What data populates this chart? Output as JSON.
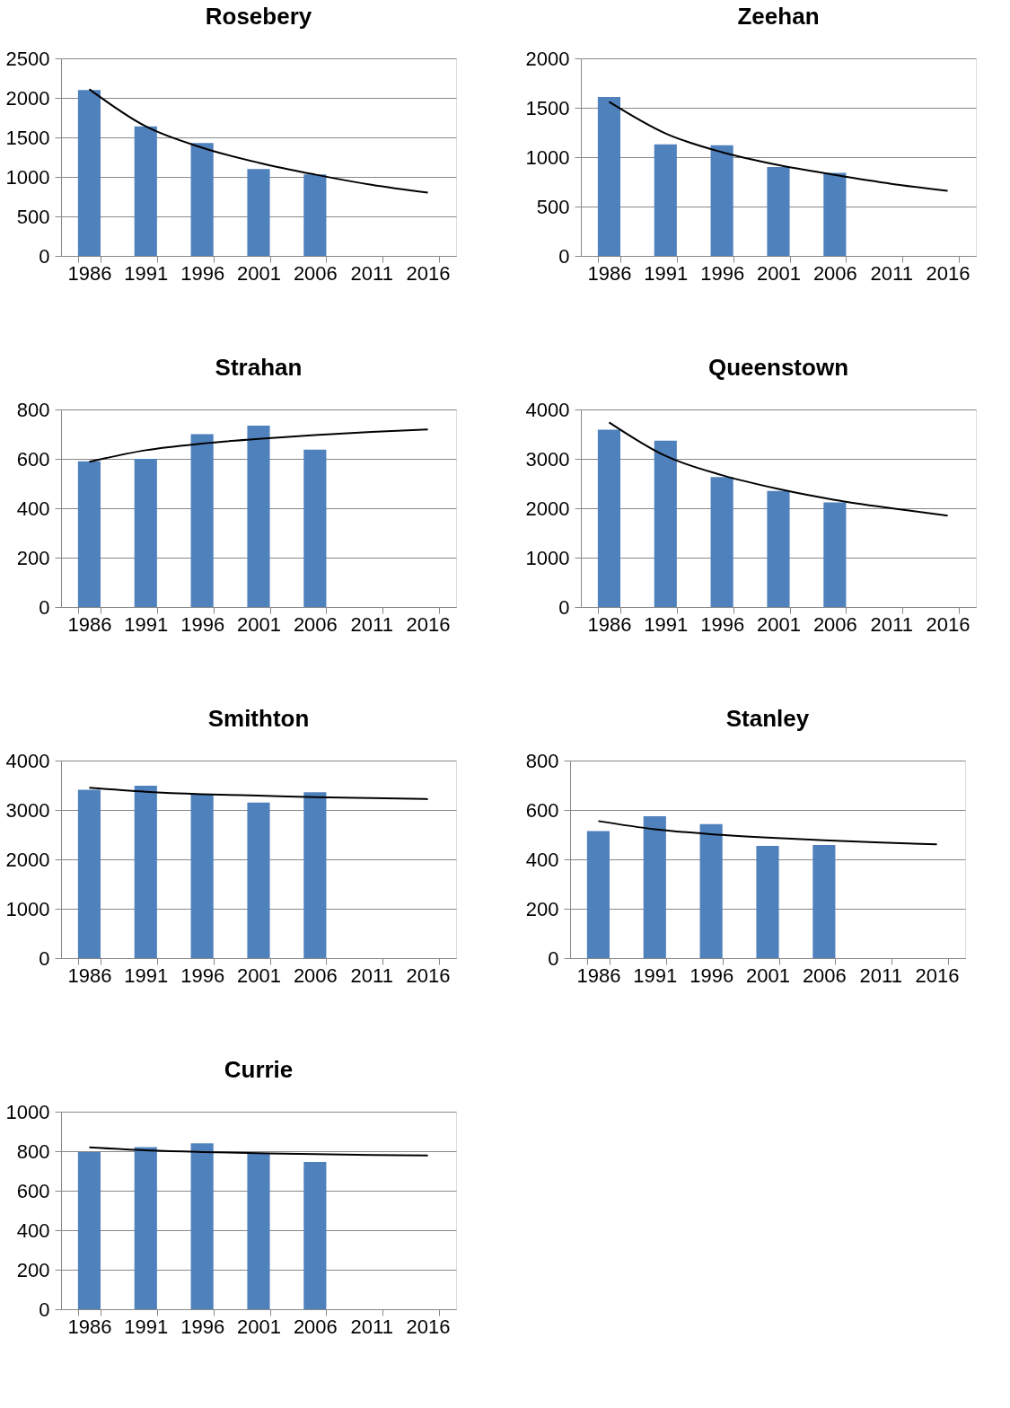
{
  "chart_data": [
    {
      "type": "bar",
      "title": "Rosebery",
      "categories": [
        "1986",
        "1991",
        "1996",
        "2001",
        "2006",
        "2011",
        "2016"
      ],
      "ylim": [
        0,
        2500
      ],
      "yticks": [
        0,
        500,
        1000,
        1500,
        2000,
        2500
      ],
      "grid": "y",
      "series": [
        {
          "color": "#4f81bd",
          "values": [
            2100,
            1640,
            1430,
            1100,
            1030,
            null,
            null
          ]
        },
        {
          "type": "line",
          "color": "#000000",
          "values": [
            2110,
            1640,
            1370,
            1180,
            1030,
            900,
            800
          ]
        }
      ]
    },
    {
      "type": "bar",
      "title": "Zeehan",
      "categories": [
        "1986",
        "1991",
        "1996",
        "2001",
        "2006",
        "2011",
        "2016"
      ],
      "ylim": [
        0,
        2000
      ],
      "yticks": [
        0,
        500,
        1000,
        1500,
        2000
      ],
      "grid": "y",
      "series": [
        {
          "color": "#4f81bd",
          "values": [
            1610,
            1130,
            1120,
            900,
            840,
            null,
            null
          ]
        },
        {
          "type": "line",
          "color": "#000000",
          "values": [
            1560,
            1240,
            1050,
            920,
            820,
            730,
            660
          ]
        }
      ]
    },
    {
      "type": "bar",
      "title": "Strahan",
      "categories": [
        "1986",
        "1991",
        "1996",
        "2001",
        "2006",
        "2011",
        "2016"
      ],
      "ylim": [
        0,
        800
      ],
      "yticks": [
        0,
        200,
        400,
        600,
        800
      ],
      "grid": "y",
      "series": [
        {
          "color": "#4f81bd",
          "values": [
            590,
            600,
            700,
            735,
            637,
            null,
            null
          ]
        },
        {
          "type": "line",
          "color": "#000000",
          "values": [
            588,
            635,
            662,
            681,
            696,
            709,
            719
          ]
        }
      ]
    },
    {
      "type": "bar",
      "title": "Queenstown",
      "categories": [
        "1986",
        "1991",
        "1996",
        "2001",
        "2006",
        "2011",
        "2016"
      ],
      "ylim": [
        0,
        4000
      ],
      "yticks": [
        0,
        1000,
        2000,
        3000,
        4000
      ],
      "grid": "y",
      "series": [
        {
          "color": "#4f81bd",
          "values": [
            3590,
            3370,
            2630,
            2350,
            2120,
            null,
            null
          ]
        },
        {
          "type": "line",
          "color": "#000000",
          "values": [
            3740,
            3060,
            2670,
            2390,
            2170,
            2000,
            1850
          ]
        }
      ]
    },
    {
      "type": "bar",
      "title": "Smithton",
      "categories": [
        "1986",
        "1991",
        "1996",
        "2001",
        "2006",
        "2011",
        "2016"
      ],
      "ylim": [
        0,
        4000
      ],
      "yticks": [
        0,
        1000,
        2000,
        3000,
        4000
      ],
      "grid": "y",
      "series": [
        {
          "color": "#4f81bd",
          "values": [
            3410,
            3490,
            3320,
            3150,
            3360,
            null,
            null
          ]
        },
        {
          "type": "line",
          "color": "#000000",
          "values": [
            3450,
            3370,
            3320,
            3290,
            3260,
            3240,
            3220
          ]
        }
      ]
    },
    {
      "type": "bar",
      "title": "Stanley",
      "categories": [
        "1986",
        "1991",
        "1996",
        "2001",
        "2006",
        "2011",
        "2016"
      ],
      "ylim": [
        0,
        800
      ],
      "yticks": [
        0,
        200,
        400,
        600,
        800
      ],
      "grid": "y",
      "series": [
        {
          "color": "#4f81bd",
          "values": [
            515,
            575,
            543,
            455,
            458,
            null,
            null
          ]
        },
        {
          "type": "line",
          "color": "#000000",
          "values": [
            555,
            522,
            502,
            488,
            477,
            468,
            461
          ]
        }
      ]
    },
    {
      "type": "bar",
      "title": "Currie",
      "categories": [
        "1986",
        "1991",
        "1996",
        "2001",
        "2006",
        "2011",
        "2016"
      ],
      "ylim": [
        0,
        1000
      ],
      "yticks": [
        0,
        200,
        400,
        600,
        800,
        1000
      ],
      "grid": "y",
      "series": [
        {
          "color": "#4f81bd",
          "values": [
            795,
            820,
            840,
            792,
            746,
            null,
            null
          ]
        },
        {
          "type": "line",
          "color": "#000000",
          "values": [
            819,
            804,
            796,
            790,
            785,
            781,
            778
          ]
        }
      ]
    }
  ]
}
